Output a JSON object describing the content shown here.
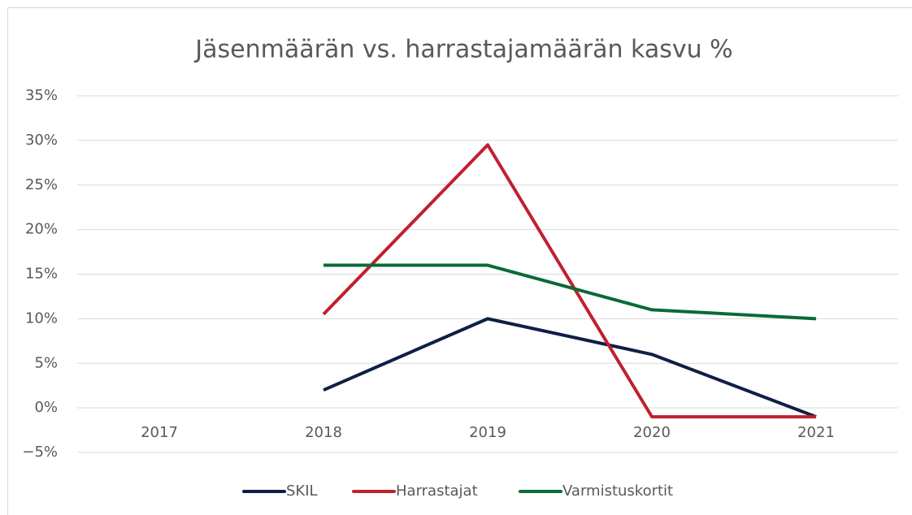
{
  "chart_data": {
    "type": "line",
    "title": "Jäsenmäärän vs. harrastajamäärän kasvu %",
    "categories": [
      "2017",
      "2018",
      "2019",
      "2020",
      "2021"
    ],
    "series": [
      {
        "name": "SKIL",
        "color": "#0e1f47",
        "values": [
          null,
          2,
          10,
          6,
          -1
        ]
      },
      {
        "name": "Harrastajat",
        "color": "#c0202f",
        "values": [
          null,
          10.5,
          29.5,
          -1,
          -1
        ]
      },
      {
        "name": "Varmistuskortit",
        "color": "#0b6a35",
        "values": [
          null,
          16,
          16,
          11,
          10
        ]
      }
    ],
    "ylim": [
      -5,
      35
    ],
    "yticks": [
      {
        "value": -5,
        "label": "−5%"
      },
      {
        "value": 0,
        "label": "0%"
      },
      {
        "value": 5,
        "label": "5%"
      },
      {
        "value": 10,
        "label": "10%"
      },
      {
        "value": 15,
        "label": "15%"
      },
      {
        "value": 20,
        "label": "20%"
      },
      {
        "value": 25,
        "label": "25%"
      },
      {
        "value": 30,
        "label": "30%"
      },
      {
        "value": 35,
        "label": "35%"
      }
    ],
    "grid": true,
    "legend": "bottom"
  }
}
